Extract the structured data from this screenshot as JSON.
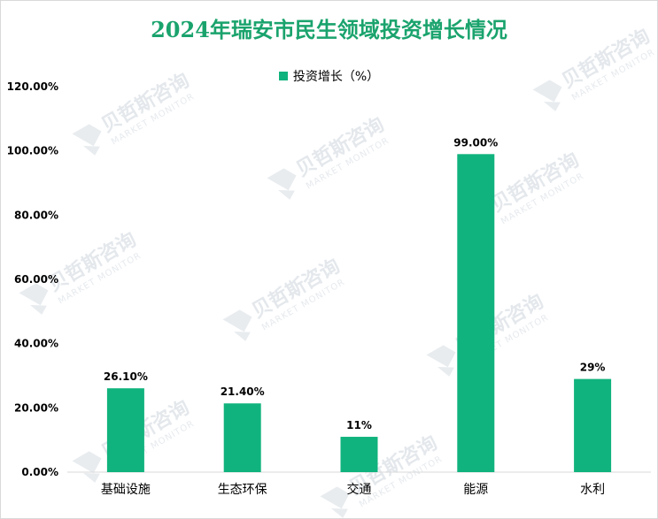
{
  "chart_data": {
    "type": "bar",
    "title": "2024年瑞安市民生领域投资增长情况",
    "categories": [
      "基础设施",
      "生态环保",
      "交通",
      "能源",
      "水利"
    ],
    "series": [
      {
        "name": "投资增长（%）",
        "values": [
          26.1,
          21.4,
          11,
          99.0,
          29
        ],
        "labels": [
          "26.10%",
          "21.40%",
          "11%",
          "99.00%",
          "29%"
        ],
        "color": "#10b37d"
      }
    ],
    "yticks": [
      "0.00%",
      "20.00%",
      "40.00%",
      "60.00%",
      "80.00%",
      "100.00%",
      "120.00%"
    ],
    "ylim": [
      0,
      120
    ],
    "legend_position": "top-center",
    "grid": false
  },
  "watermark": {
    "text": "贝哲斯咨询",
    "subtext": "MARKET MONITOR"
  },
  "colors": {
    "title": "#1aa36d",
    "bar": "#10b37d",
    "axis": "#d9d9d9"
  }
}
